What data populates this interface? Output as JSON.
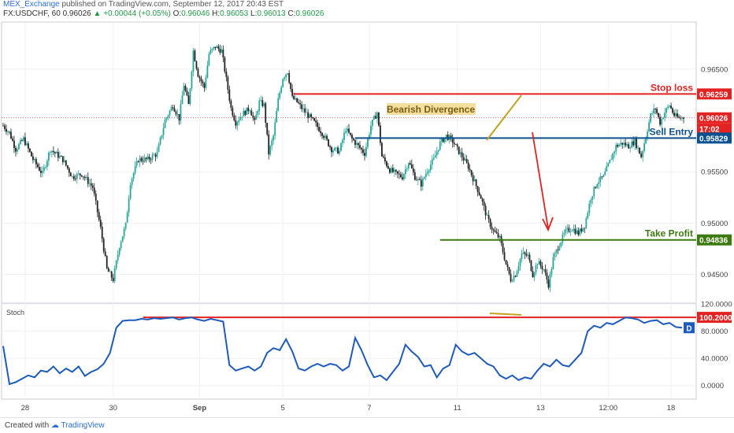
{
  "header": {
    "author": "MEX_Exchange",
    "published": "published on TradingView.com, September 12, 2017 20:43 EST",
    "symbol": "FX:USDCHF, 60",
    "last": "0.96026",
    "change": "▲ +0.00044 (+0.05%)",
    "o_label": "O:",
    "o_value": "0.96046",
    "h_label": "H:",
    "h_value": "0.96053",
    "l_label": "L:",
    "l_value": "0.96013",
    "c_label": "C:",
    "c_value": "0.96026"
  },
  "footer": {
    "created_with": "Created with",
    "brand": "TradingView"
  },
  "colors": {
    "up": "#26a69a",
    "down": "#222222",
    "stop": "#e32222",
    "entry": "#0d5290",
    "take": "#3b7a0e",
    "divergence": "#c6a11e",
    "stoch": "#1d5bbd"
  },
  "chart_data": [
    {
      "type": "candlestick",
      "symbol": "FX:USDCHF",
      "interval": "60",
      "ylim": [
        0.9422,
        0.9696
      ],
      "y_ticks": [
        "0.96500",
        "0.96000",
        "0.95500",
        "0.95000",
        "0.94500"
      ],
      "x_ticks": [
        "28",
        "30",
        "Sep",
        "5",
        "7",
        "11",
        "13",
        "12:00",
        "18"
      ],
      "price_path": [
        [
          0,
          0.9595
        ],
        [
          4,
          0.9588
        ],
        [
          8,
          0.9572
        ],
        [
          13,
          0.9582
        ],
        [
          19,
          0.9562
        ],
        [
          25,
          0.9548
        ],
        [
          30,
          0.9572
        ],
        [
          38,
          0.9562
        ],
        [
          44,
          0.9545
        ],
        [
          50,
          0.9548
        ],
        [
          57,
          0.9535
        ],
        [
          62,
          0.9495
        ],
        [
          66,
          0.9455
        ],
        [
          70,
          0.9445
        ],
        [
          74,
          0.9478
        ],
        [
          78,
          0.9498
        ],
        [
          81,
          0.954
        ],
        [
          86,
          0.9562
        ],
        [
          92,
          0.9562
        ],
        [
          98,
          0.9568
        ],
        [
          103,
          0.96
        ],
        [
          108,
          0.9615
        ],
        [
          112,
          0.9602
        ],
        [
          115,
          0.9635
        ],
        [
          118,
          0.9615
        ],
        [
          121,
          0.9668
        ],
        [
          124,
          0.9645
        ],
        [
          128,
          0.9632
        ],
        [
          131,
          0.9665
        ],
        [
          135,
          0.9672
        ],
        [
          139,
          0.9668
        ],
        [
          142,
          0.964
        ],
        [
          145,
          0.9612
        ],
        [
          148,
          0.9598
        ],
        [
          152,
          0.9606
        ],
        [
          157,
          0.9612
        ],
        [
          160,
          0.9598
        ],
        [
          163,
          0.9618
        ],
        [
          166,
          0.9615
        ],
        [
          169,
          0.9568
        ],
        [
          172,
          0.9585
        ],
        [
          175,
          0.962
        ],
        [
          178,
          0.9642
        ],
        [
          181,
          0.9648
        ],
        [
          184,
          0.9622
        ],
        [
          187,
          0.9618
        ],
        [
          190,
          0.9612
        ],
        [
          194,
          0.9605
        ],
        [
          198,
          0.9598
        ],
        [
          203,
          0.9588
        ],
        [
          209,
          0.9572
        ],
        [
          214,
          0.957
        ],
        [
          218,
          0.9592
        ],
        [
          222,
          0.9582
        ],
        [
          226,
          0.9575
        ],
        [
          230,
          0.9568
        ],
        [
          234,
          0.9595
        ],
        [
          238,
          0.9608
        ],
        [
          241,
          0.9565
        ],
        [
          246,
          0.9552
        ],
        [
          250,
          0.9548
        ],
        [
          254,
          0.9545
        ],
        [
          258,
          0.956
        ],
        [
          262,
          0.9545
        ],
        [
          266,
          0.9538
        ],
        [
          270,
          0.9552
        ],
        [
          274,
          0.9562
        ],
        [
          278,
          0.9578
        ],
        [
          282,
          0.9585
        ],
        [
          286,
          0.958
        ],
        [
          289,
          0.9572
        ],
        [
          292,
          0.9565
        ],
        [
          296,
          0.9555
        ],
        [
          300,
          0.954
        ],
        [
          304,
          0.9525
        ],
        [
          308,
          0.9505
        ],
        [
          312,
          0.9492
        ],
        [
          316,
          0.9485
        ],
        [
          320,
          0.946
        ],
        [
          323,
          0.9445
        ],
        [
          326,
          0.945
        ],
        [
          330,
          0.947
        ],
        [
          334,
          0.9468
        ],
        [
          337,
          0.945
        ],
        [
          340,
          0.9462
        ],
        [
          344,
          0.9455
        ],
        [
          347,
          0.944
        ],
        [
          350,
          0.9465
        ],
        [
          354,
          0.948
        ],
        [
          358,
          0.9492
        ],
        [
          362,
          0.9495
        ],
        [
          366,
          0.949
        ],
        [
          370,
          0.9498
        ],
        [
          374,
          0.9525
        ],
        [
          378,
          0.954
        ],
        [
          382,
          0.9545
        ],
        [
          386,
          0.956
        ],
        [
          390,
          0.9575
        ],
        [
          394,
          0.9578
        ],
        [
          398,
          0.9575
        ],
        [
          402,
          0.958
        ],
        [
          406,
          0.9565
        ],
        [
          409,
          0.9585
        ],
        [
          412,
          0.9605
        ],
        [
          415,
          0.9612
        ],
        [
          418,
          0.9598
        ],
        [
          421,
          0.9608
        ],
        [
          424,
          0.9615
        ],
        [
          427,
          0.9605
        ],
        [
          430,
          0.9602
        ],
        [
          433,
          0.9603
        ]
      ],
      "levels": [
        {
          "name": "Stop loss",
          "value": 0.96259,
          "label": "0.96259"
        },
        {
          "name": "Sell Entry",
          "value": 0.95829,
          "label": "0.95829"
        },
        {
          "name": "Take Profit",
          "value": 0.94836,
          "label": "0.94836"
        }
      ],
      "current_price": {
        "label": "0.96026",
        "countdown": "17:02"
      },
      "annotations": [
        "Bearish Divergence"
      ]
    },
    {
      "type": "line",
      "title": "Stoch",
      "series_label": "D",
      "ylim": [
        -20,
        120
      ],
      "y_ticks": [
        "120.0000",
        "80.0000",
        "40.0000",
        "0.0000"
      ],
      "level": {
        "value": 100.2,
        "label": "100.2000"
      },
      "values": [
        [
          0,
          58
        ],
        [
          4,
          2
        ],
        [
          8,
          5
        ],
        [
          12,
          10
        ],
        [
          16,
          15
        ],
        [
          20,
          12
        ],
        [
          24,
          22
        ],
        [
          28,
          20
        ],
        [
          32,
          28
        ],
        [
          36,
          18
        ],
        [
          40,
          25
        ],
        [
          44,
          20
        ],
        [
          48,
          28
        ],
        [
          52,
          14
        ],
        [
          56,
          20
        ],
        [
          60,
          24
        ],
        [
          64,
          32
        ],
        [
          68,
          48
        ],
        [
          72,
          85
        ],
        [
          76,
          95
        ],
        [
          80,
          96
        ],
        [
          84,
          96
        ],
        [
          88,
          98
        ],
        [
          92,
          97
        ],
        [
          96,
          99
        ],
        [
          100,
          98
        ],
        [
          104,
          99
        ],
        [
          108,
          100
        ],
        [
          112,
          97
        ],
        [
          116,
          99
        ],
        [
          120,
          100
        ],
        [
          124,
          97
        ],
        [
          128,
          95
        ],
        [
          132,
          98
        ],
        [
          136,
          96
        ],
        [
          140,
          94
        ],
        [
          144,
          30
        ],
        [
          148,
          22
        ],
        [
          152,
          25
        ],
        [
          156,
          28
        ],
        [
          160,
          22
        ],
        [
          164,
          28
        ],
        [
          168,
          48
        ],
        [
          172,
          55
        ],
        [
          176,
          52
        ],
        [
          180,
          68
        ],
        [
          184,
          50
        ],
        [
          188,
          25
        ],
        [
          192,
          22
        ],
        [
          196,
          28
        ],
        [
          200,
          32
        ],
        [
          204,
          28
        ],
        [
          208,
          32
        ],
        [
          212,
          30
        ],
        [
          216,
          22
        ],
        [
          220,
          28
        ],
        [
          224,
          70
        ],
        [
          228,
          52
        ],
        [
          232,
          30
        ],
        [
          236,
          12
        ],
        [
          240,
          15
        ],
        [
          244,
          8
        ],
        [
          248,
          20
        ],
        [
          252,
          32
        ],
        [
          256,
          60
        ],
        [
          260,
          50
        ],
        [
          264,
          42
        ],
        [
          268,
          28
        ],
        [
          272,
          30
        ],
        [
          276,
          12
        ],
        [
          280,
          25
        ],
        [
          284,
          30
        ],
        [
          288,
          60
        ],
        [
          292,
          50
        ],
        [
          296,
          45
        ],
        [
          300,
          48
        ],
        [
          304,
          40
        ],
        [
          308,
          32
        ],
        [
          312,
          28
        ],
        [
          316,
          15
        ],
        [
          320,
          10
        ],
        [
          324,
          15
        ],
        [
          328,
          8
        ],
        [
          332,
          12
        ],
        [
          336,
          10
        ],
        [
          340,
          22
        ],
        [
          344,
          32
        ],
        [
          348,
          28
        ],
        [
          352,
          38
        ],
        [
          356,
          30
        ],
        [
          360,
          28
        ],
        [
          364,
          38
        ],
        [
          368,
          48
        ],
        [
          372,
          80
        ],
        [
          376,
          88
        ],
        [
          380,
          85
        ],
        [
          384,
          92
        ],
        [
          388,
          90
        ],
        [
          392,
          95
        ],
        [
          396,
          100
        ],
        [
          400,
          99
        ],
        [
          404,
          97
        ],
        [
          408,
          92
        ],
        [
          412,
          95
        ],
        [
          416,
          96
        ],
        [
          420,
          90
        ],
        [
          424,
          92
        ],
        [
          428,
          86
        ],
        [
          432,
          85
        ]
      ]
    }
  ],
  "labels": {
    "stop": "Stop loss",
    "entry": "Sell Entry",
    "take": "Take Profit",
    "divergence": "Bearish Divergence",
    "stoch_title": "Stoch",
    "stoch_series": "D",
    "stoch_level": "100.2000"
  }
}
